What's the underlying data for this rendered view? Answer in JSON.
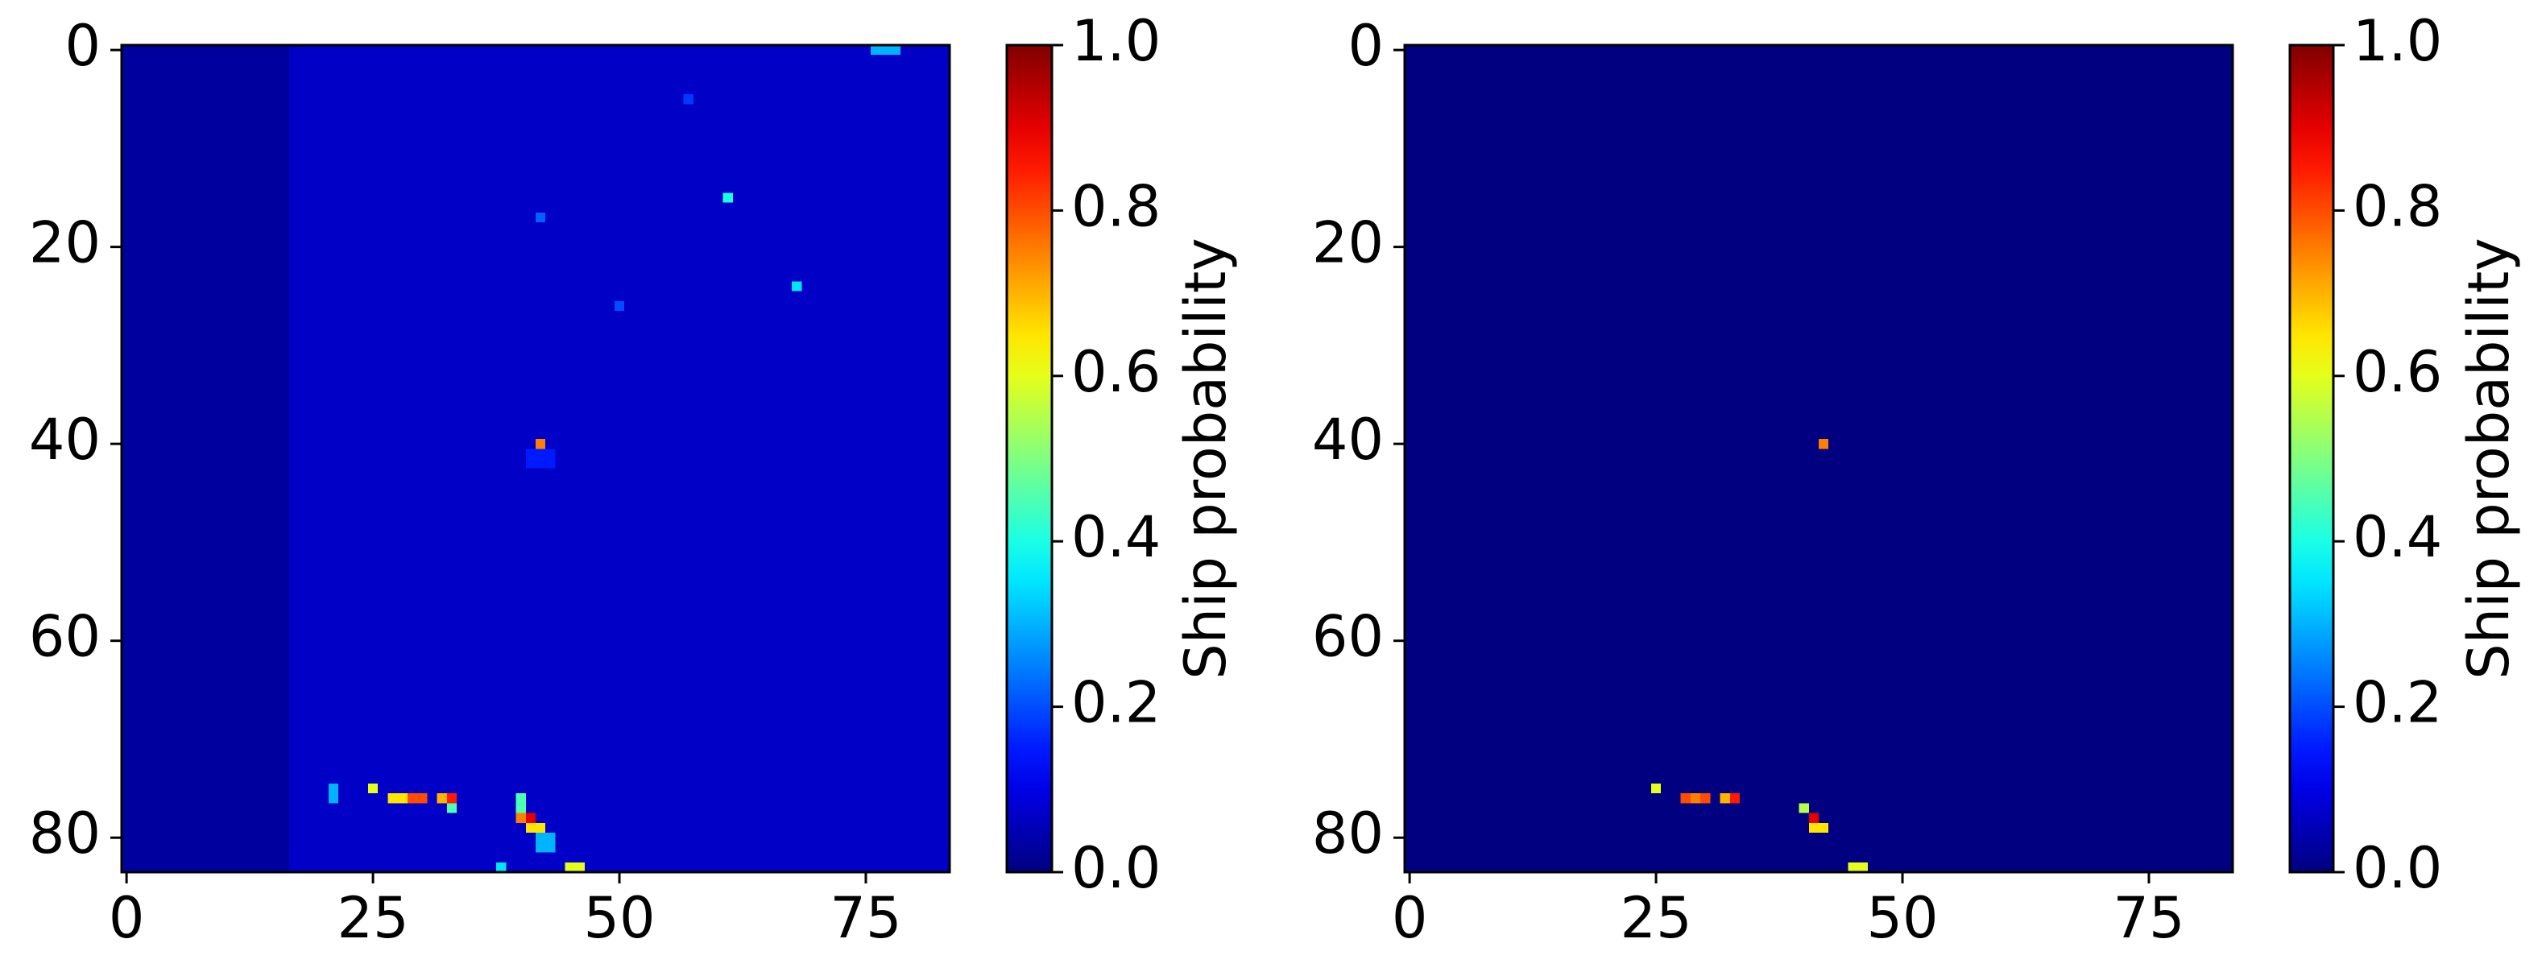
{
  "chart_data": [
    {
      "type": "heatmap",
      "colormap": "jet",
      "colorbar_label": "Ship probability",
      "xlim": [
        -0.5,
        83.5
      ],
      "ylim": [
        83.5,
        -0.5
      ],
      "xticks": [
        0,
        25,
        50,
        75
      ],
      "yticks": [
        0,
        20,
        40,
        60,
        80
      ],
      "clim": [
        0,
        1
      ],
      "cticks": [
        {
          "value": 0,
          "label": "0.0"
        },
        {
          "value": 0.2,
          "label": "0.2"
        },
        {
          "value": 0.4,
          "label": "0.4"
        },
        {
          "value": 0.6,
          "label": "0.6"
        },
        {
          "value": 0.8,
          "label": "0.8"
        },
        {
          "value": 1,
          "label": "1.0"
        }
      ],
      "cells": [
        {
          "x": [
            0,
            16
          ],
          "y": [
            0,
            83
          ],
          "value": 0.03
        },
        {
          "x": [
            17,
            83
          ],
          "y": [
            0,
            83
          ],
          "value": 0.07
        },
        {
          "x": [
            76,
            78
          ],
          "y": [
            0,
            0
          ],
          "value": 0.3
        },
        {
          "x": [
            57,
            57
          ],
          "y": [
            5,
            5
          ],
          "value": 0.18
        },
        {
          "x": [
            42,
            42
          ],
          "y": [
            17,
            17
          ],
          "value": 0.22
        },
        {
          "x": [
            61,
            61
          ],
          "y": [
            15,
            15
          ],
          "value": 0.4
        },
        {
          "x": [
            68,
            68
          ],
          "y": [
            24,
            24
          ],
          "value": 0.35
        },
        {
          "x": [
            50,
            50
          ],
          "y": [
            26,
            26
          ],
          "value": 0.2
        },
        {
          "x": [
            42,
            42
          ],
          "y": [
            40,
            40
          ],
          "value": 0.75
        },
        {
          "x": [
            41,
            43
          ],
          "y": [
            41,
            42
          ],
          "value": 0.15
        },
        {
          "x": [
            21,
            21
          ],
          "y": [
            75,
            76
          ],
          "value": 0.3
        },
        {
          "x": [
            25,
            25
          ],
          "y": [
            75,
            75
          ],
          "value": 0.6
        },
        {
          "x": [
            27,
            28
          ],
          "y": [
            76,
            76
          ],
          "value": 0.65
        },
        {
          "x": [
            29,
            30
          ],
          "y": [
            76,
            76
          ],
          "value": 0.8
        },
        {
          "x": [
            32,
            32
          ],
          "y": [
            76,
            76
          ],
          "value": 0.7
        },
        {
          "x": [
            33,
            33
          ],
          "y": [
            76,
            76
          ],
          "value": 0.85
        },
        {
          "x": [
            33,
            33
          ],
          "y": [
            77,
            77
          ],
          "value": 0.45
        },
        {
          "x": [
            40,
            40
          ],
          "y": [
            76,
            77
          ],
          "value": 0.45
        },
        {
          "x": [
            40,
            40
          ],
          "y": [
            78,
            78
          ],
          "value": 0.75
        },
        {
          "x": [
            41,
            41
          ],
          "y": [
            78,
            78
          ],
          "value": 0.9
        },
        {
          "x": [
            41,
            42
          ],
          "y": [
            79,
            79
          ],
          "value": 0.65
        },
        {
          "x": [
            42,
            43
          ],
          "y": [
            80,
            81
          ],
          "value": 0.3
        },
        {
          "x": [
            38,
            38
          ],
          "y": [
            83,
            83
          ],
          "value": 0.35
        },
        {
          "x": [
            45,
            46
          ],
          "y": [
            83,
            83
          ],
          "value": 0.6
        }
      ]
    },
    {
      "type": "heatmap",
      "colormap": "jet",
      "colorbar_label": "Ship probability",
      "xlim": [
        -0.5,
        83.5
      ],
      "ylim": [
        83.5,
        -0.5
      ],
      "xticks": [
        0,
        25,
        50,
        75
      ],
      "yticks": [
        0,
        20,
        40,
        60,
        80
      ],
      "clim": [
        0,
        1
      ],
      "cticks": [
        {
          "value": 0,
          "label": "0.0"
        },
        {
          "value": 0.2,
          "label": "0.2"
        },
        {
          "value": 0.4,
          "label": "0.4"
        },
        {
          "value": 0.6,
          "label": "0.6"
        },
        {
          "value": 0.8,
          "label": "0.8"
        },
        {
          "value": 1,
          "label": "1.0"
        }
      ],
      "cells": [
        {
          "x": [
            0,
            83
          ],
          "y": [
            0,
            83
          ],
          "value": 0
        },
        {
          "x": [
            42,
            42
          ],
          "y": [
            40,
            40
          ],
          "value": 0.75
        },
        {
          "x": [
            25,
            25
          ],
          "y": [
            75,
            75
          ],
          "value": 0.6
        },
        {
          "x": [
            28,
            28
          ],
          "y": [
            76,
            76
          ],
          "value": 0.8
        },
        {
          "x": [
            29,
            29
          ],
          "y": [
            76,
            76
          ],
          "value": 0.75
        },
        {
          "x": [
            30,
            30
          ],
          "y": [
            76,
            76
          ],
          "value": 0.8
        },
        {
          "x": [
            32,
            32
          ],
          "y": [
            76,
            76
          ],
          "value": 0.7
        },
        {
          "x": [
            33,
            33
          ],
          "y": [
            76,
            76
          ],
          "value": 0.85
        },
        {
          "x": [
            40,
            40
          ],
          "y": [
            77,
            77
          ],
          "value": 0.55
        },
        {
          "x": [
            41,
            41
          ],
          "y": [
            78,
            78
          ],
          "value": 0.9
        },
        {
          "x": [
            41,
            42
          ],
          "y": [
            79,
            79
          ],
          "value": 0.65
        },
        {
          "x": [
            45,
            46
          ],
          "y": [
            83,
            83
          ],
          "value": 0.6
        }
      ]
    }
  ]
}
